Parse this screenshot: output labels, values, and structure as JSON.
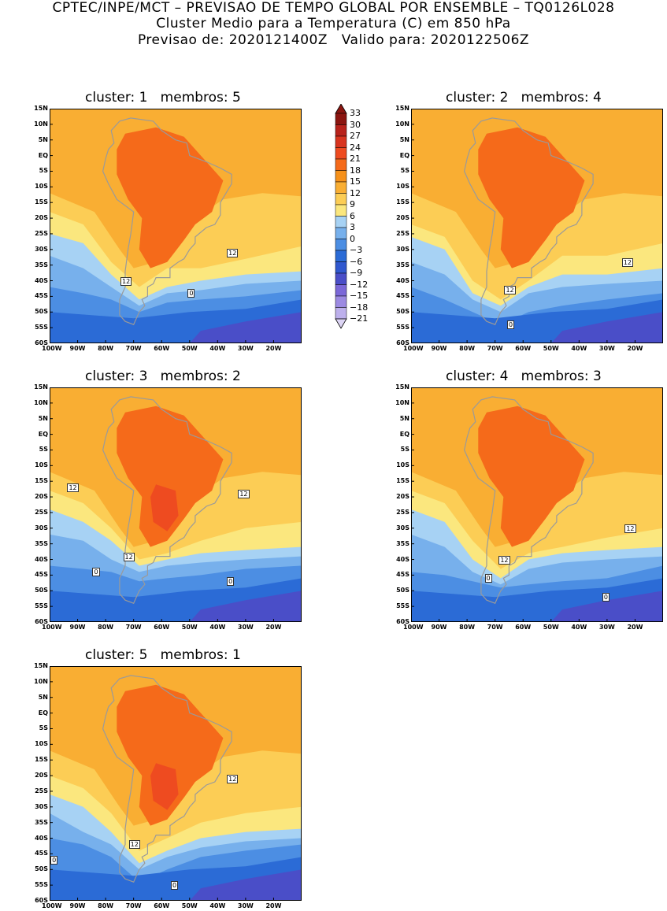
{
  "header": {
    "line1": "CPTEC/INPE/MCT – PREVISAO DE TEMPO GLOBAL POR ENSEMBLE – TQ0126L028",
    "line2": "Cluster Medio para a Temperatura (C) em 850 hPa",
    "line3": "Previsao de: 2020121400Z   Valido para: 2020122506Z"
  },
  "axes": {
    "lat_labels": [
      "15N",
      "10N",
      "5N",
      "EQ",
      "5S",
      "10S",
      "15S",
      "20S",
      "25S",
      "30S",
      "35S",
      "40S",
      "45S",
      "50S",
      "55S",
      "60S"
    ],
    "lon_labels": [
      "100W",
      "90W",
      "80W",
      "70W",
      "60W",
      "50W",
      "40W",
      "30W",
      "20W"
    ]
  },
  "colorbar": {
    "levels": [
      "33",
      "30",
      "27",
      "24",
      "21",
      "18",
      "15",
      "12",
      "9",
      "6",
      "3",
      "0",
      "−3",
      "−6",
      "−9",
      "−12",
      "−15",
      "−18",
      "−21"
    ],
    "colors": [
      "#8b1510",
      "#b8221b",
      "#d8341f",
      "#ee4b20",
      "#f56a1a",
      "#f6911a",
      "#f9ae33",
      "#fccd55",
      "#fbe77e",
      "#a7d2f4",
      "#77b0ec",
      "#4c8ee3",
      "#2b6bd6",
      "#3058cf",
      "#4a4ec8",
      "#7b68d8",
      "#9c8ae2",
      "#bdb0ec",
      "#ddd5f5"
    ]
  },
  "panels": [
    {
      "title": "cluster: 1   membros: 5",
      "labels": [
        {
          "text": "12",
          "lon": -35,
          "lat": -31
        },
        {
          "text": "12",
          "lon": -73,
          "lat": -40
        },
        {
          "text": "0",
          "lon": -49,
          "lat": -44
        }
      ]
    },
    {
      "title": "cluster: 2   membros: 4",
      "labels": [
        {
          "text": "12",
          "lon": -23,
          "lat": -34
        },
        {
          "text": "12",
          "lon": -65,
          "lat": -43
        },
        {
          "text": "0",
          "lon": -64,
          "lat": -54
        }
      ]
    },
    {
      "title": "cluster: 3   membros: 2",
      "labels": [
        {
          "text": "12",
          "lon": -92,
          "lat": -17
        },
        {
          "text": "12",
          "lon": -31,
          "lat": -19
        },
        {
          "text": "12",
          "lon": -72,
          "lat": -39
        },
        {
          "text": "0",
          "lon": -83,
          "lat": -44
        },
        {
          "text": "0",
          "lon": -35,
          "lat": -47
        }
      ]
    },
    {
      "title": "cluster: 4   membros: 3",
      "labels": [
        {
          "text": "12",
          "lon": -22,
          "lat": -30
        },
        {
          "text": "12",
          "lon": -67,
          "lat": -40
        },
        {
          "text": "0",
          "lon": -72,
          "lat": -46
        },
        {
          "text": "0",
          "lon": -30,
          "lat": -52
        }
      ]
    },
    {
      "title": "cluster: 5   membros: 1",
      "labels": [
        {
          "text": "12",
          "lon": -35,
          "lat": -21
        },
        {
          "text": "12",
          "lon": -70,
          "lat": -42
        },
        {
          "text": "0",
          "lon": -98,
          "lat": -47
        },
        {
          "text": "0",
          "lon": -55,
          "lat": -55
        }
      ]
    }
  ]
}
